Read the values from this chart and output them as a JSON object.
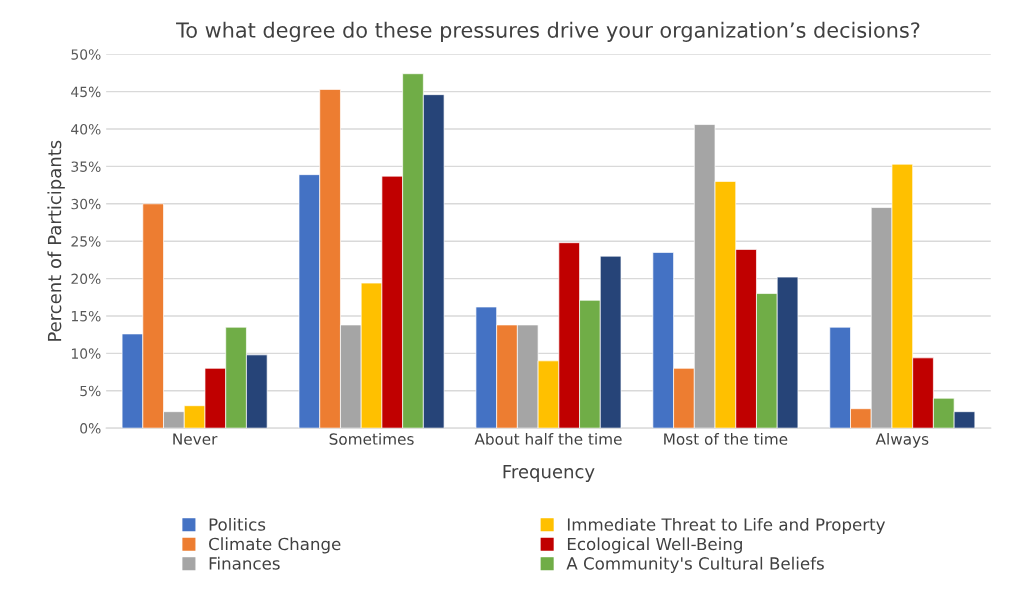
{
  "chart_data": {
    "type": "bar",
    "title": "To what degree do these pressures drive your organization’s decisions?",
    "xlabel": "Frequency",
    "ylabel": "Percent of Participants",
    "categories": [
      "Never",
      "Sometimes",
      "About half the time",
      "Most of the time",
      "Always"
    ],
    "series": [
      {
        "name": "Politics",
        "color": "#4472c4",
        "values": [
          12.6,
          33.9,
          16.2,
          23.5,
          13.5
        ]
      },
      {
        "name": "Climate Change",
        "color": "#ed7d31",
        "values": [
          30.0,
          45.3,
          13.8,
          8.0,
          2.6
        ]
      },
      {
        "name": "Finances",
        "color": "#a5a5a5",
        "values": [
          2.2,
          13.8,
          13.8,
          40.6,
          29.5
        ]
      },
      {
        "name": "Immediate Threat to Life and Property",
        "color": "#ffc000",
        "values": [
          3.0,
          19.4,
          9.0,
          33.0,
          35.3
        ]
      },
      {
        "name": "Ecological Well-Being",
        "color": "#c00000",
        "values": [
          8.0,
          33.7,
          24.8,
          23.9,
          9.4
        ]
      },
      {
        "name": "A Community's Cultural Beliefs",
        "color": "#70ad47",
        "values": [
          13.5,
          47.4,
          17.1,
          18.0,
          4.0
        ]
      },
      {
        "color": "#264478",
        "values": [
          9.8,
          44.6,
          23.0,
          20.2,
          2.2
        ]
      }
    ],
    "ylim": [
      0,
      50
    ],
    "yticks": [
      {
        "value": 0,
        "label": "0%"
      },
      {
        "value": 5,
        "label": "5%"
      },
      {
        "value": 10,
        "label": "10%"
      },
      {
        "value": 15,
        "label": "15%"
      },
      {
        "value": 20,
        "label": "20%"
      },
      {
        "value": 25,
        "label": "25%"
      },
      {
        "value": 30,
        "label": "30%"
      },
      {
        "value": 35,
        "label": "35%"
      },
      {
        "value": 40,
        "label": "40%"
      },
      {
        "value": 45,
        "label": "45%"
      },
      {
        "value": 50,
        "label": "50%"
      }
    ],
    "grid": "y",
    "legend": "bottom"
  }
}
